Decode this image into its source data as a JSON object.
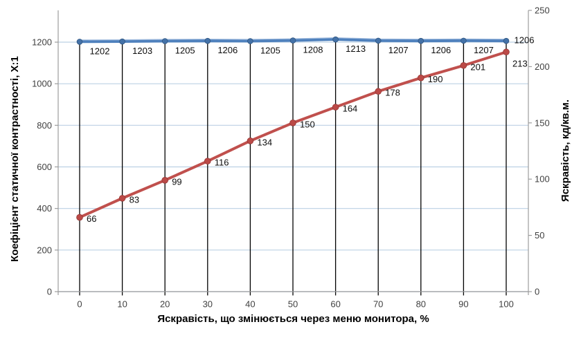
{
  "chart_data": {
    "type": "line",
    "x": [
      0,
      10,
      20,
      30,
      40,
      50,
      60,
      70,
      80,
      90,
      100
    ],
    "xlabel": "Яскравість, що змінюється через меню монитора, %",
    "left_axis": {
      "label": "Коефіцієнт статичної контрастності, Х:1",
      "ticks": [
        0,
        200,
        400,
        600,
        800,
        1000,
        1200
      ],
      "range": [
        0,
        1200
      ]
    },
    "right_axis": {
      "label": "Яскравість, кд/кв.м.",
      "ticks": [
        0,
        50,
        100,
        150,
        200,
        250
      ],
      "range": [
        0,
        250
      ]
    },
    "series": [
      {
        "name": "static-contrast-ratio",
        "axis": "left",
        "values": [
          1202,
          1203,
          1205,
          1206,
          1205,
          1208,
          1213,
          1207,
          1206,
          1207,
          1206
        ],
        "color": "#4f81bd",
        "highlight_color": "#9cb8dc",
        "marker_color": "#4472a8",
        "marker_edge": "#2f5580"
      },
      {
        "name": "brightness",
        "axis": "right",
        "values": [
          66,
          83,
          99,
          116,
          134,
          150,
          164,
          178,
          190,
          201,
          213
        ],
        "color": "#c0504d",
        "highlight_color": "#d58a88",
        "marker_color": "#bb4a47",
        "marker_edge": "#943634"
      }
    ],
    "legend": "none",
    "grid": {
      "horizontal": true,
      "drop_lines": true
    },
    "style": {
      "gridline_color": "#bcd0e4",
      "dropline_color": "#000000",
      "axis_color": "#9c9c9c",
      "tick_text_color": "#3f3f3f",
      "data_label_color": "#0d0d0d"
    }
  }
}
